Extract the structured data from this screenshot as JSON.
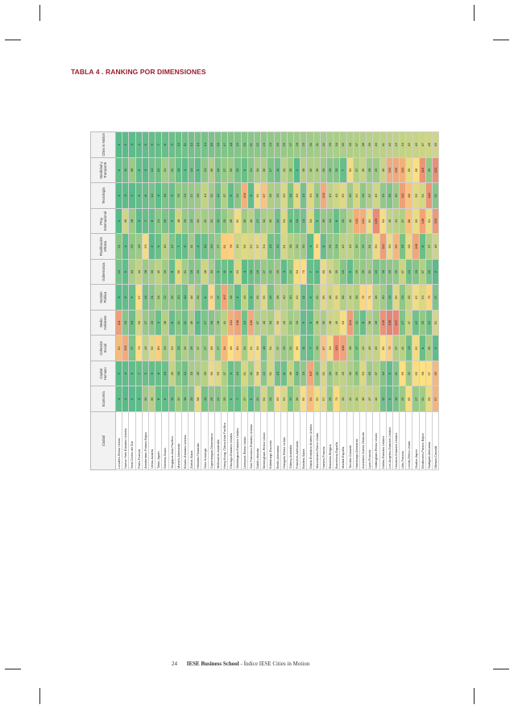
{
  "title": "TABLA 4 . RANKING POR DIMENSIONES",
  "footer": {
    "page": "24",
    "publisher": "IESE Business School",
    "doc": " - Índice IESE Cities in Motion"
  },
  "colors": {
    "best": "#57bb8a",
    "mid": "#ffe083",
    "worst": "#e67c73",
    "title": "#9b1c2e"
  },
  "columns": [
    "Ciudad",
    "Economía",
    "Capital Humano",
    "Cohesión Social",
    "Medio Ambiente",
    "Gestión Pública",
    "Gobernanza",
    "Planificación Urbana",
    "Proy. Internacional",
    "Tecnología",
    "Movilidad y Transporte",
    "Cities in Motion"
  ],
  "rows": [
    [
      "Londres-Reino Unido",
      "4",
      "2",
      "92",
      "111",
      "3",
      "13",
      "21",
      "1",
      "1",
      "6",
      "1"
    ],
    [
      "Nueva York-Estados Unidos",
      "1",
      "4",
      "103",
      "20",
      "5",
      "5",
      "4",
      "49",
      "3",
      "11",
      "2"
    ],
    [
      "Seúl-Corea del Sur",
      "2",
      "5",
      "17",
      "10",
      "9",
      "34",
      "25",
      "28",
      "2",
      "28",
      "3"
    ],
    [
      "París-Francia",
      "3",
      "7",
      "70",
      "50",
      "67",
      "44",
      "28",
      "3",
      "6",
      "6",
      "4"
    ],
    [
      "Ámsterdam-Países Bajos",
      "30",
      "9",
      "43",
      "27",
      "14",
      "28",
      "63",
      "7",
      "8",
      "3",
      "5"
    ],
    [
      "Viena-Austria",
      "39",
      "6",
      "56",
      "23",
      "21",
      "33",
      "2",
      "8",
      "14",
      "13",
      "6"
    ],
    [
      "Tokio-Japón",
      "8",
      "8",
      "80",
      "9",
      "34",
      "42",
      "9",
      "21",
      "4",
      "12",
      "7"
    ],
    [
      "Ginebra-Suiza",
      "6",
      "10",
      "33",
      "38",
      "22",
      "30",
      "40",
      "16",
      "15",
      "31",
      "8"
    ],
    [
      "Singapur-Asia Pacífico",
      "11",
      "45",
      "53",
      "8",
      "26",
      "8",
      "17",
      "9",
      "9",
      "22",
      "9"
    ],
    [
      "Munich-Alemania",
      "32",
      "20",
      "20",
      "21",
      "20",
      "56",
      "7",
      "48",
      "26",
      "10",
      "10"
    ],
    [
      "Boston-Estados Unidos",
      "18",
      "12",
      "36",
      "11",
      "10",
      "31",
      "6",
      "26",
      "23",
      "4",
      "11"
    ],
    [
      "Zúrich-Suiza",
      "20",
      "33",
      "26",
      "36",
      "48",
      "19",
      "31",
      "22",
      "27",
      "14",
      "12"
    ],
    [
      "Helsinki-Finlandia",
      "58",
      "35",
      "37",
      "3",
      "29",
      "23",
      "4",
      "34",
      "29",
      "5",
      "13"
    ],
    [
      "Oslo-Noruega",
      "14",
      "39",
      "27",
      "17",
      "8",
      "48",
      "10",
      "32",
      "44",
      "24",
      "14"
    ],
    [
      "Copenhague-Dinamarca",
      "25",
      "60",
      "58",
      "20",
      "72",
      "33",
      "20",
      "31",
      "32",
      "36",
      "15"
    ],
    [
      "Melbourne-Australia",
      "21",
      "55",
      "27",
      "28",
      "17",
      "9",
      "27",
      "11",
      "12",
      "16",
      "16"
    ],
    [
      "Hong Kong, China-Asia Pacífico",
      "33",
      "37",
      "94",
      "41",
      "107",
      "11",
      "81",
      "25",
      "37",
      "27",
      "17"
    ],
    [
      "Chicago-Estados Unidos",
      "9",
      "9",
      "68",
      "101",
      "28",
      "6",
      "78",
      "36",
      "6",
      "29",
      "18"
    ],
    [
      "Washington-Estados Unidos",
      "7",
      "16",
      "80",
      "108",
      "4",
      "53",
      "49",
      "62",
      "22",
      "15",
      "19"
    ],
    [
      "Liverpool-Reino Unido",
      "37",
      "51",
      "34",
      "13",
      "43",
      "4",
      "55",
      "30",
      "100",
      "9",
      "20"
    ],
    [
      "San Francisco-Estados Unidos",
      "5",
      "31",
      "61",
      "105",
      "6",
      "10",
      "52",
      "40",
      "5",
      "21",
      "21"
    ],
    [
      "Dublín-Irlanda",
      "22",
      "58",
      "64",
      "37",
      "39",
      "16",
      "57",
      "17",
      "61",
      "34",
      "22"
    ],
    [
      "Birmingham-Reino Unido",
      "51",
      "22",
      "18",
      "40",
      "55",
      "27",
      "54",
      "34",
      "87",
      "35",
      "23"
    ],
    [
      "Edimburgo-Escocia",
      "24",
      "51",
      "51",
      "34",
      "16",
      "22",
      "13",
      "35",
      "36",
      "17",
      "24"
    ],
    [
      "Berlín-Alemania",
      "63",
      "13",
      "37",
      "56",
      "38",
      "29",
      "12",
      "12",
      "33",
      "11",
      "25"
    ],
    [
      "Glasgow-Reino Unido",
      "53",
      "11",
      "29",
      "43",
      "40",
      "4",
      "51",
      "54",
      "53",
      "41",
      "26"
    ],
    [
      "Sídney-Australia",
      "17",
      "46",
      "32",
      "31",
      "30",
      "21",
      "38",
      "11",
      "18",
      "30",
      "27"
    ],
    [
      "Fráncfort-Alemania",
      "36",
      "16",
      "66",
      "34",
      "53",
      "64",
      "33",
      "10",
      "56",
      "1",
      "28"
    ],
    [
      "Basilea-Suiza",
      "65",
      "24",
      "11",
      "6",
      "11",
      "70",
      "30",
      "14",
      "14",
      "39",
      "29"
    ],
    [
      "Dubái-Emiratos Árabes Unidos",
      "91",
      "107",
      "7",
      "6",
      "5",
      "7",
      "3",
      "54",
      "54",
      "35",
      "30"
    ],
    [
      "Manchester-Reino Unido",
      "62",
      "25",
      "28",
      "38",
      "32",
      "5",
      "70",
      "9",
      "28",
      "36",
      "31"
    ],
    [
      "Nantes-Francia",
      "57",
      "52",
      "87",
      "35",
      "56",
      "60",
      "8",
      "26",
      "103",
      "29",
      "32"
    ],
    [
      "Bruselas-Bélgica",
      "26",
      "29",
      "64",
      "48",
      "48",
      "49",
      "25",
      "24",
      "43",
      "20",
      "33"
    ],
    [
      "Barcelona-España",
      "73",
      "40",
      "120",
      "49",
      "56",
      "39",
      "24",
      "8",
      "49",
      "20",
      "34"
    ],
    [
      "Madrid-España",
      "43",
      "43",
      "108",
      "64",
      "38",
      "19",
      "42",
      "25",
      "55",
      "7",
      "35"
    ],
    [
      "Toronto-Canadá",
      "41",
      "36",
      "38",
      "113",
      "44",
      "5",
      "43",
      "40",
      "30",
      "63",
      "36"
    ],
    [
      "Hamburgo-Alemania",
      "41",
      "26",
      "17",
      "21",
      "38",
      "29",
      "30",
      "102",
      "52",
      "37",
      "37"
    ],
    [
      "Auckland-Nueva Zelanda",
      "48",
      "54",
      "42",
      "8",
      "75",
      "25",
      "22",
      "101",
      "24",
      "45",
      "38"
    ],
    [
      "Lyon-Francia",
      "47",
      "30",
      "46",
      "38",
      "71",
      "31",
      "31",
      "62",
      "37",
      "28",
      "39"
    ],
    [
      "Nottingham-Reino Unido",
      "44",
      "37",
      "45",
      "28",
      "38",
      "15",
      "60",
      "125",
      "49",
      "29",
      "40"
    ],
    [
      "Dallas-Estados Unidos",
      "12",
      "19",
      "66",
      "120",
      "30",
      "20",
      "112",
      "64",
      "25",
      "46",
      "41"
    ],
    [
      "Los Ángeles-Estados Unidos",
      "5",
      "5",
      "79",
      "130",
      "13",
      "23",
      "60",
      "45",
      "19",
      "103",
      "42"
    ],
    [
      "Houston-Estados Unidos",
      "16",
      "21",
      "37",
      "127",
      "56",
      "25",
      "96",
      "41",
      "30",
      "105",
      "43"
    ],
    [
      "Lille-Francia",
      "29",
      "69",
      "41",
      "17",
      "23",
      "47",
      "16",
      "37",
      "111",
      "100",
      "44"
    ],
    [
      "Leeds-Reino Unido",
      "65",
      "32",
      "13",
      "47",
      "45",
      "13",
      "58",
      "88",
      "88",
      "59",
      "45"
    ],
    [
      "Osaka-Japón",
      "27",
      "65",
      "62",
      "12",
      "62",
      "20",
      "106",
      "60",
      "56",
      "66",
      "46"
    ],
    [
      "Eindhoven-Países Bajos",
      "31",
      "68",
      "8",
      "25",
      "53",
      "37",
      "8",
      "108",
      "51",
      "119",
      "47"
    ],
    [
      "Stuttgart-Alemania",
      "59",
      "67",
      "35",
      "12",
      "75",
      "15",
      "37",
      "61",
      "118",
      "25",
      "48"
    ],
    [
      "Ottawa-Canadá",
      "97",
      "95",
      "4",
      "51",
      "17",
      "2",
      "48",
      "115",
      "21",
      "122",
      "49"
    ]
  ]
}
